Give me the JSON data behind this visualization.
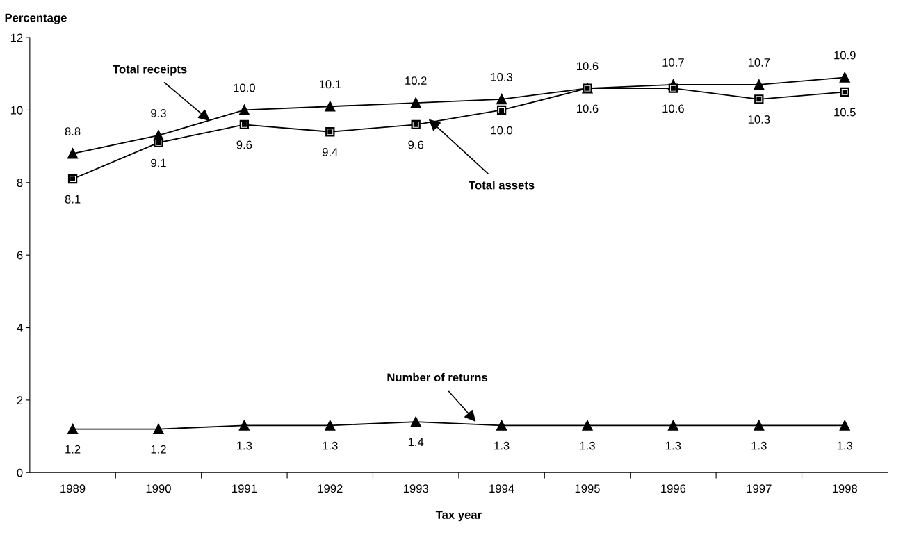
{
  "chart_data": {
    "type": "line",
    "ylabel": "Percentage",
    "xlabel": "Tax year",
    "x": [
      1989,
      1990,
      1991,
      1992,
      1993,
      1994,
      1995,
      1996,
      1997,
      1998
    ],
    "xlim": [
      1988.5,
      1998.5
    ],
    "xticks": [
      1989,
      1990,
      1991,
      1992,
      1993,
      1994,
      1995,
      1996,
      1997,
      1998
    ],
    "ylim": [
      0,
      12
    ],
    "yticks": [
      0,
      2,
      4,
      6,
      8,
      10,
      12
    ],
    "grid": false,
    "legend": false,
    "series": [
      {
        "color": "#000000",
        "marker": "triangle",
        "values": [
          8.8,
          9.3,
          10.0,
          10.1,
          10.2,
          10.3,
          10.6,
          10.7,
          10.7,
          10.9
        ],
        "value_labels": [
          "8.8",
          "9.3",
          "10.0",
          "10.1",
          "10.2",
          "10.3",
          "10.6",
          "10.7",
          "10.7",
          "10.9"
        ]
      },
      {
        "color": "#000000",
        "marker": "square",
        "values": [
          8.1,
          9.1,
          9.6,
          9.4,
          9.6,
          10.0,
          10.6,
          10.6,
          10.3,
          10.5
        ],
        "value_labels": [
          "8.1",
          "9.1",
          "9.6",
          "9.4",
          "9.6",
          "10.0",
          "10.6",
          "10.6",
          "10.3",
          "10.5"
        ]
      },
      {
        "color": "#000000",
        "marker": "triangle",
        "values": [
          1.2,
          1.2,
          1.3,
          1.3,
          1.4,
          1.3,
          1.3,
          1.3,
          1.3,
          1.3
        ],
        "value_labels": [
          "1.2",
          "1.2",
          "1.3",
          "1.3",
          "1.4",
          "1.3",
          "1.3",
          "1.3",
          "1.3",
          "1.3"
        ]
      }
    ],
    "annotations": [
      {
        "text": "Total receipts",
        "x": 1990.6,
        "y": 9.7
      },
      {
        "text": "Total assets",
        "x": 1993.15,
        "y": 9.75
      },
      {
        "text": "Number of returns",
        "x": 1993.7,
        "y": 1.4
      }
    ]
  }
}
